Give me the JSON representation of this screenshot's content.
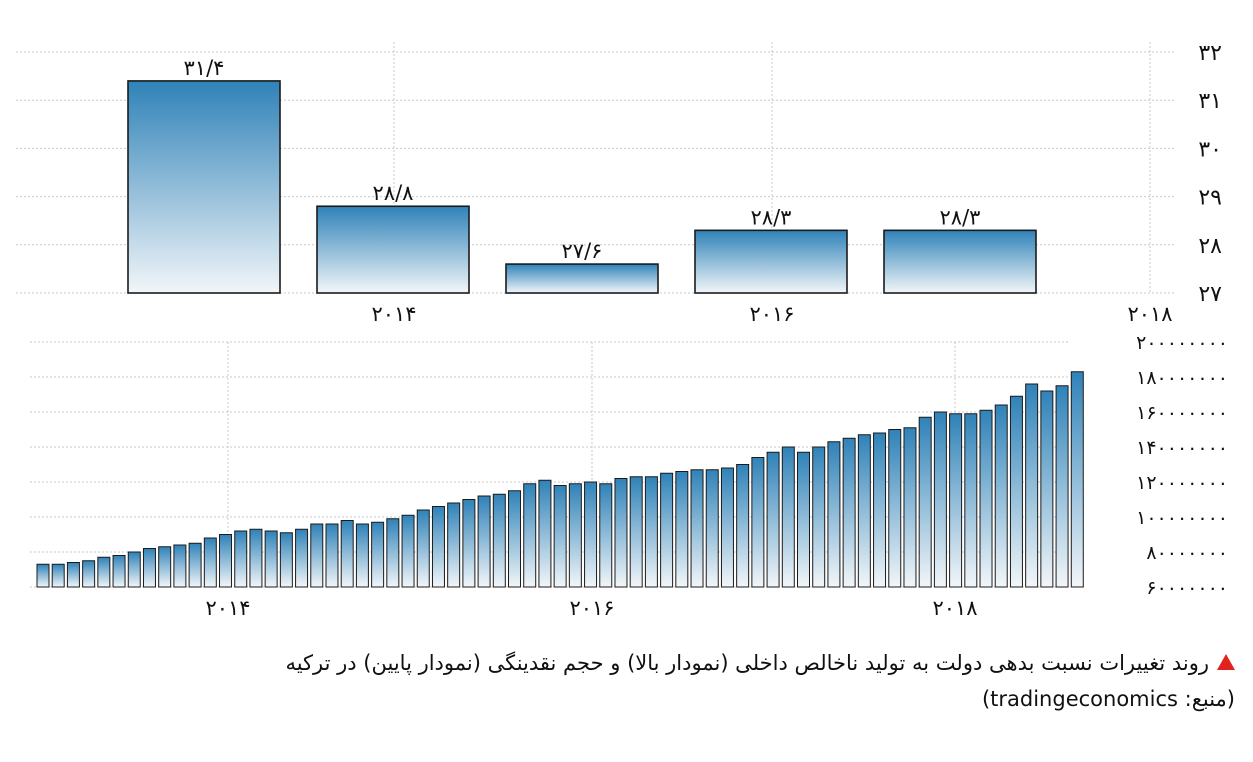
{
  "chart_data": [
    {
      "type": "bar",
      "categories": [
        "",
        "2014",
        "",
        "2016",
        ""
      ],
      "values": [
        31.4,
        28.8,
        27.6,
        28.3,
        28.3
      ],
      "data_labels": [
        "۳۱/۴",
        "۲۸/۸",
        "۲۷/۶",
        "۲۸/۳",
        "۲۸/۳"
      ],
      "x_tick_labels": [
        "۲۰۱۴",
        "۲۰۱۶",
        "۲۰۱۸"
      ],
      "y_tick_labels": [
        "۳۲",
        "۳۱",
        "۳۰",
        "۲۹",
        "۲۸",
        "۲۷"
      ],
      "ylim": [
        27,
        32
      ],
      "grid": true,
      "title": "",
      "xlabel": "",
      "ylabel": ""
    },
    {
      "type": "bar",
      "x_start": "2013-01",
      "frequency": "monthly",
      "values": [
        73000000,
        73000000,
        74000000,
        75000000,
        77000000,
        78000000,
        80000000,
        82000000,
        83000000,
        84000000,
        85000000,
        88000000,
        90000000,
        92000000,
        93000000,
        92000000,
        91000000,
        93000000,
        96000000,
        96000000,
        98000000,
        96000000,
        97000000,
        99000000,
        101000000,
        104000000,
        106000000,
        108000000,
        110000000,
        112000000,
        113000000,
        115000000,
        119000000,
        121000000,
        118000000,
        119000000,
        120000000,
        119000000,
        122000000,
        123000000,
        123000000,
        125000000,
        126000000,
        127000000,
        127000000,
        128000000,
        130000000,
        134000000,
        137000000,
        140000000,
        137000000,
        140000000,
        143000000,
        145000000,
        147000000,
        148000000,
        150000000,
        151000000,
        157000000,
        160000000,
        159000000,
        159000000,
        161000000,
        164000000,
        169000000,
        176000000,
        172000000,
        175000000,
        183000000
      ],
      "x_tick_labels": [
        "۲۰۱۴",
        "۲۰۱۶",
        "۲۰۱۸"
      ],
      "y_tick_labels": [
        "۲۰۰۰۰۰۰۰۰",
        "۱۸۰۰۰۰۰۰۰",
        "۱۶۰۰۰۰۰۰۰",
        "۱۴۰۰۰۰۰۰۰",
        "۱۲۰۰۰۰۰۰۰",
        "۱۰۰۰۰۰۰۰۰",
        "۸۰۰۰۰۰۰۰",
        "۶۰۰۰۰۰۰۰"
      ],
      "ylim": [
        60000000,
        200000000
      ],
      "grid": true,
      "title": "",
      "xlabel": "",
      "ylabel": ""
    }
  ],
  "caption": {
    "text": "روند تغییرات نسبت بدهی دولت به تولید ناخالص داخلی (نمودار بالا) و حجم نقدینگی (نمودار پایین) در ترکیه",
    "source": "(منبع: tradingeconomics)"
  },
  "colors": {
    "bar_top": "#2f82b8",
    "bar_bottom": "#f2f6f9",
    "bar_stroke": "#1b1b1b",
    "grid": "#c8c8c8",
    "caption_marker": "#e0231f"
  }
}
